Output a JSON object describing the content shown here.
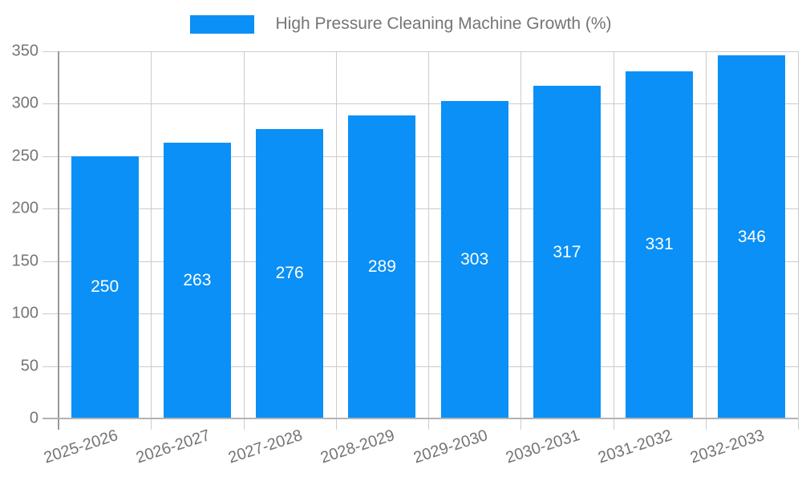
{
  "chart_data": {
    "type": "bar",
    "title": "High Pressure Cleaning Machine Growth (%)",
    "legend_position": "top",
    "categories": [
      "2025-2026",
      "2026-2027",
      "2027-2028",
      "2028-2029",
      "2029-2030",
      "2030-2031",
      "2031-2032",
      "2032-2033"
    ],
    "series": [
      {
        "name": "High Pressure Cleaning Machine Growth (%)",
        "values": [
          250,
          263,
          276,
          289,
          303,
          317,
          331,
          346
        ]
      }
    ],
    "xlabel": "",
    "ylabel": "",
    "ylim": [
      0,
      350
    ],
    "yticks": [
      0,
      50,
      100,
      150,
      200,
      250,
      300,
      350
    ],
    "grid": true,
    "bar_value_labels": [
      250,
      263,
      276,
      289,
      303,
      317,
      331,
      346
    ]
  },
  "colors": {
    "bar": "#0a90f6",
    "bar_value_text": "#ffffff",
    "axis_text": "#757575",
    "legend_text": "#757575",
    "gridline": "#cccccc",
    "y_axis_line": "#999999",
    "x_baseline": "#b3b3b3",
    "background": "#ffffff"
  }
}
